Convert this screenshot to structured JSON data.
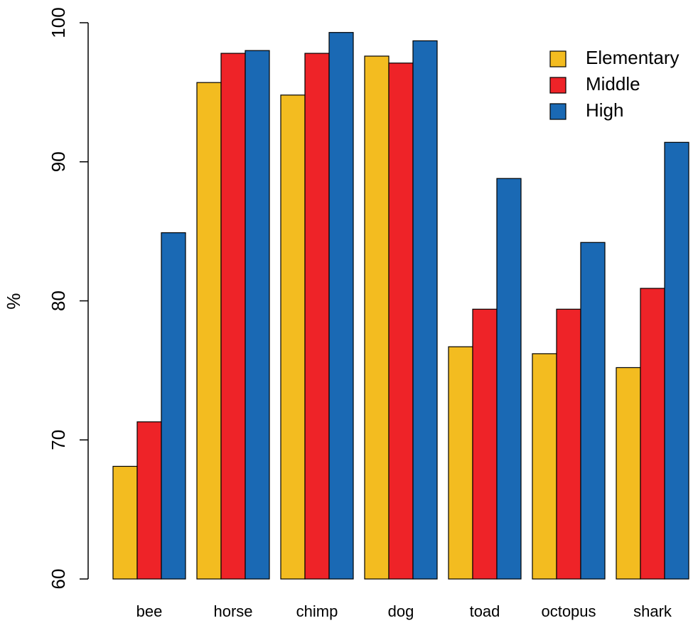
{
  "chart_data": {
    "type": "bar",
    "title": "",
    "xlabel": "",
    "ylabel": "%",
    "ylim": [
      60,
      100
    ],
    "yticks": [
      60,
      70,
      80,
      90,
      100
    ],
    "categories": [
      "bee",
      "horse",
      "chimp",
      "dog",
      "toad",
      "octopus",
      "shark"
    ],
    "series": [
      {
        "name": "Elementary",
        "color": "#f3bc20",
        "values": [
          68.1,
          95.7,
          94.8,
          97.6,
          76.7,
          76.2,
          75.2
        ]
      },
      {
        "name": "Middle",
        "color": "#ee2328",
        "values": [
          71.3,
          97.8,
          97.8,
          97.1,
          79.4,
          79.4,
          80.9
        ]
      },
      {
        "name": "High",
        "color": "#1a69b4",
        "values": [
          84.9,
          98.0,
          99.3,
          98.7,
          88.8,
          84.2,
          91.4
        ]
      }
    ],
    "legend_position": "top-right",
    "grid": false
  }
}
